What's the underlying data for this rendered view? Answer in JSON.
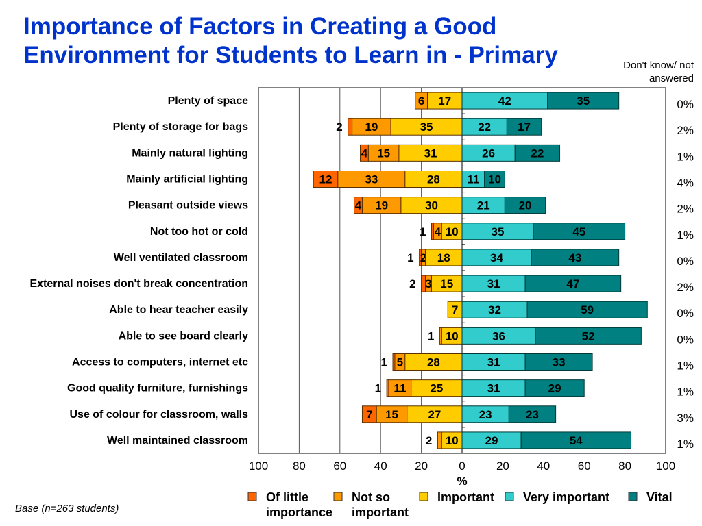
{
  "chart_data": {
    "type": "bar",
    "subtype": "diverging-stacked-horizontal",
    "title": "Importance of Factors in Creating a Good Environment for Students to Learn in - Primary",
    "xlabel": "%",
    "xlim": [
      -100,
      100
    ],
    "xtick_labels": [
      "100",
      "80",
      "60",
      "40",
      "20",
      "0",
      "20",
      "40",
      "60",
      "80",
      "100"
    ],
    "grid": "vertical gridlines on left half",
    "legend_position": "bottom",
    "side_column_header": "Don't know/ not answered",
    "footnote": "Base (n=263 students)",
    "categories": [
      "Plenty of space",
      "Plenty of storage for bags",
      "Mainly natural lighting",
      "Mainly artificial lighting",
      "Pleasant outside views",
      "Not too hot or cold",
      "Well ventilated classroom",
      "External noises don't break concentration",
      "Able to hear teacher easily",
      "Able to see board clearly",
      "Access to computers, internet etc",
      "Good quality furniture, furnishings",
      "Use of colour for classroom, walls",
      "Well maintained classroom"
    ],
    "series": [
      {
        "name": "Of little importance",
        "side": "negative",
        "color": "#FF6600",
        "values": [
          0,
          2,
          4,
          12,
          4,
          1,
          1,
          2,
          0,
          0,
          1,
          1,
          7,
          0
        ]
      },
      {
        "name": "Not so important",
        "side": "negative",
        "color": "#FF9900",
        "values": [
          6,
          19,
          15,
          33,
          19,
          4,
          2,
          3,
          0,
          1,
          5,
          11,
          15,
          2
        ]
      },
      {
        "name": "Important",
        "side": "negative",
        "color": "#FFCC00",
        "values": [
          17,
          35,
          31,
          28,
          30,
          10,
          18,
          15,
          7,
          10,
          28,
          25,
          27,
          10
        ]
      },
      {
        "name": "Very important",
        "side": "positive",
        "color": "#33CCCC",
        "values": [
          42,
          22,
          26,
          11,
          21,
          35,
          34,
          31,
          32,
          36,
          31,
          31,
          23,
          29
        ]
      },
      {
        "name": "Vital",
        "side": "positive",
        "color": "#008080",
        "values": [
          35,
          17,
          22,
          10,
          20,
          45,
          43,
          47,
          59,
          52,
          33,
          29,
          23,
          54
        ]
      }
    ],
    "dont_know": [
      "0%",
      "2%",
      "1%",
      "4%",
      "2%",
      "1%",
      "0%",
      "2%",
      "0%",
      "0%",
      "1%",
      "1%",
      "3%",
      "1%"
    ]
  }
}
